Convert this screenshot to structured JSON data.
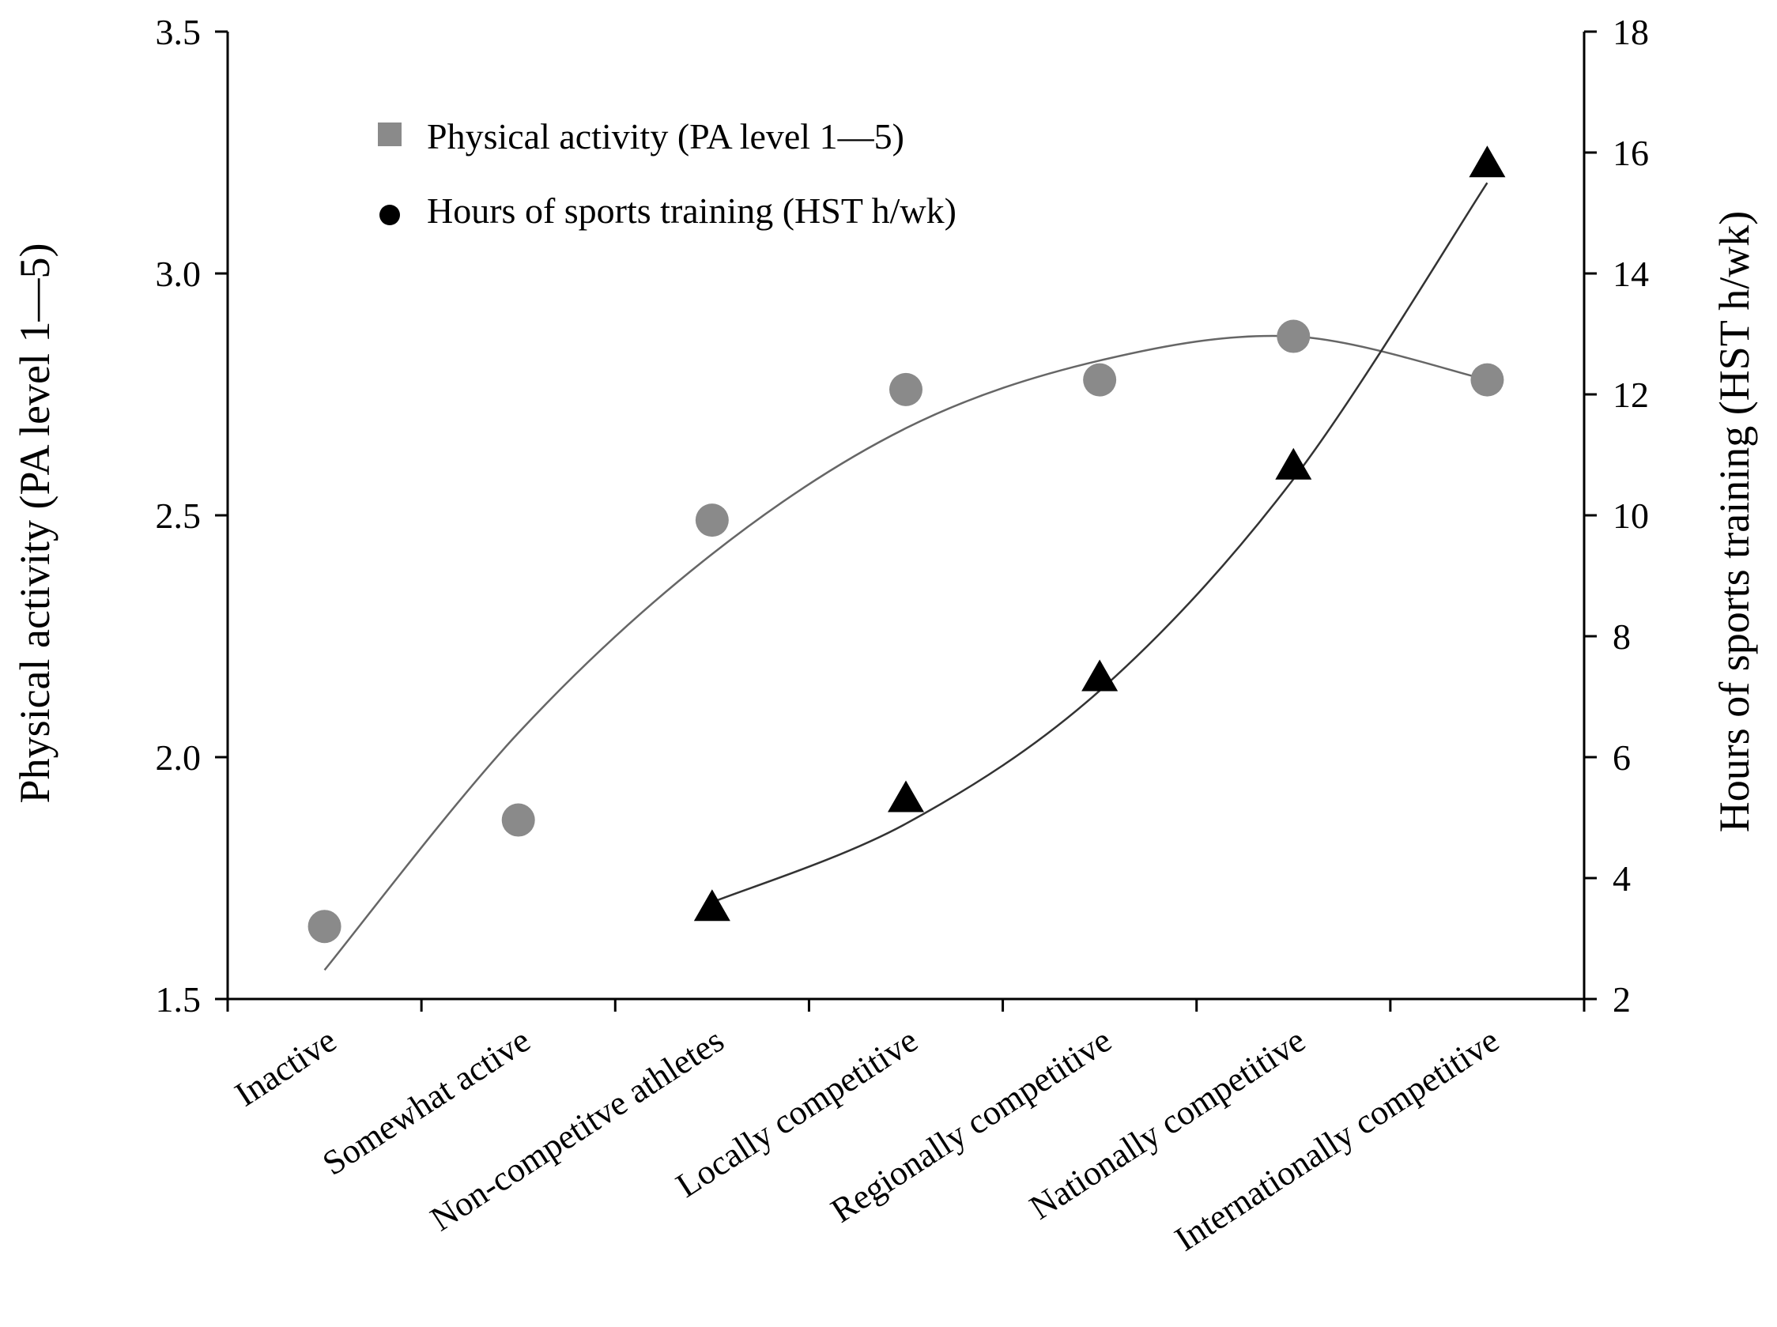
{
  "chart_data": {
    "type": "scatter",
    "title": "",
    "categories": [
      "Inactive",
      "Somewhat active",
      "Non-competitve athletes",
      "Locally competitive",
      "Regionally competitive",
      "Nationally competitive",
      "Internationally competitive"
    ],
    "ylabel": "Physical activity (PA level 1—5)",
    "y2label": "Hours of sports training (HST h/wk)",
    "ylim": [
      1.5,
      3.5
    ],
    "y2lim": [
      2,
      18
    ],
    "yticks": [
      "1.5",
      "2.0",
      "2.5",
      "3.0",
      "3.5"
    ],
    "y2ticks": [
      "2",
      "4",
      "6",
      "8",
      "10",
      "12",
      "14",
      "16",
      "18"
    ],
    "legend_position": "top-left",
    "series": [
      {
        "name": "Physical activity (PA level 1—5)",
        "axis": "left",
        "marker": "circle",
        "legend_marker": "square",
        "color": "#8a8a8a",
        "values": [
          1.65,
          1.87,
          2.49,
          2.76,
          2.78,
          2.87,
          2.78
        ],
        "trend_values": [
          1.56,
          2.05,
          2.42,
          2.68,
          2.82,
          2.87,
          2.78
        ]
      },
      {
        "name": "Hours of sports training (HST h/wk)",
        "axis": "right",
        "marker": "triangle",
        "legend_marker": "circle",
        "color": "#000000",
        "values": [
          null,
          null,
          3.5,
          5.3,
          7.3,
          10.8,
          15.8
        ],
        "trend_values": [
          null,
          null,
          3.6,
          4.9,
          7.1,
          10.6,
          15.5
        ]
      }
    ]
  }
}
